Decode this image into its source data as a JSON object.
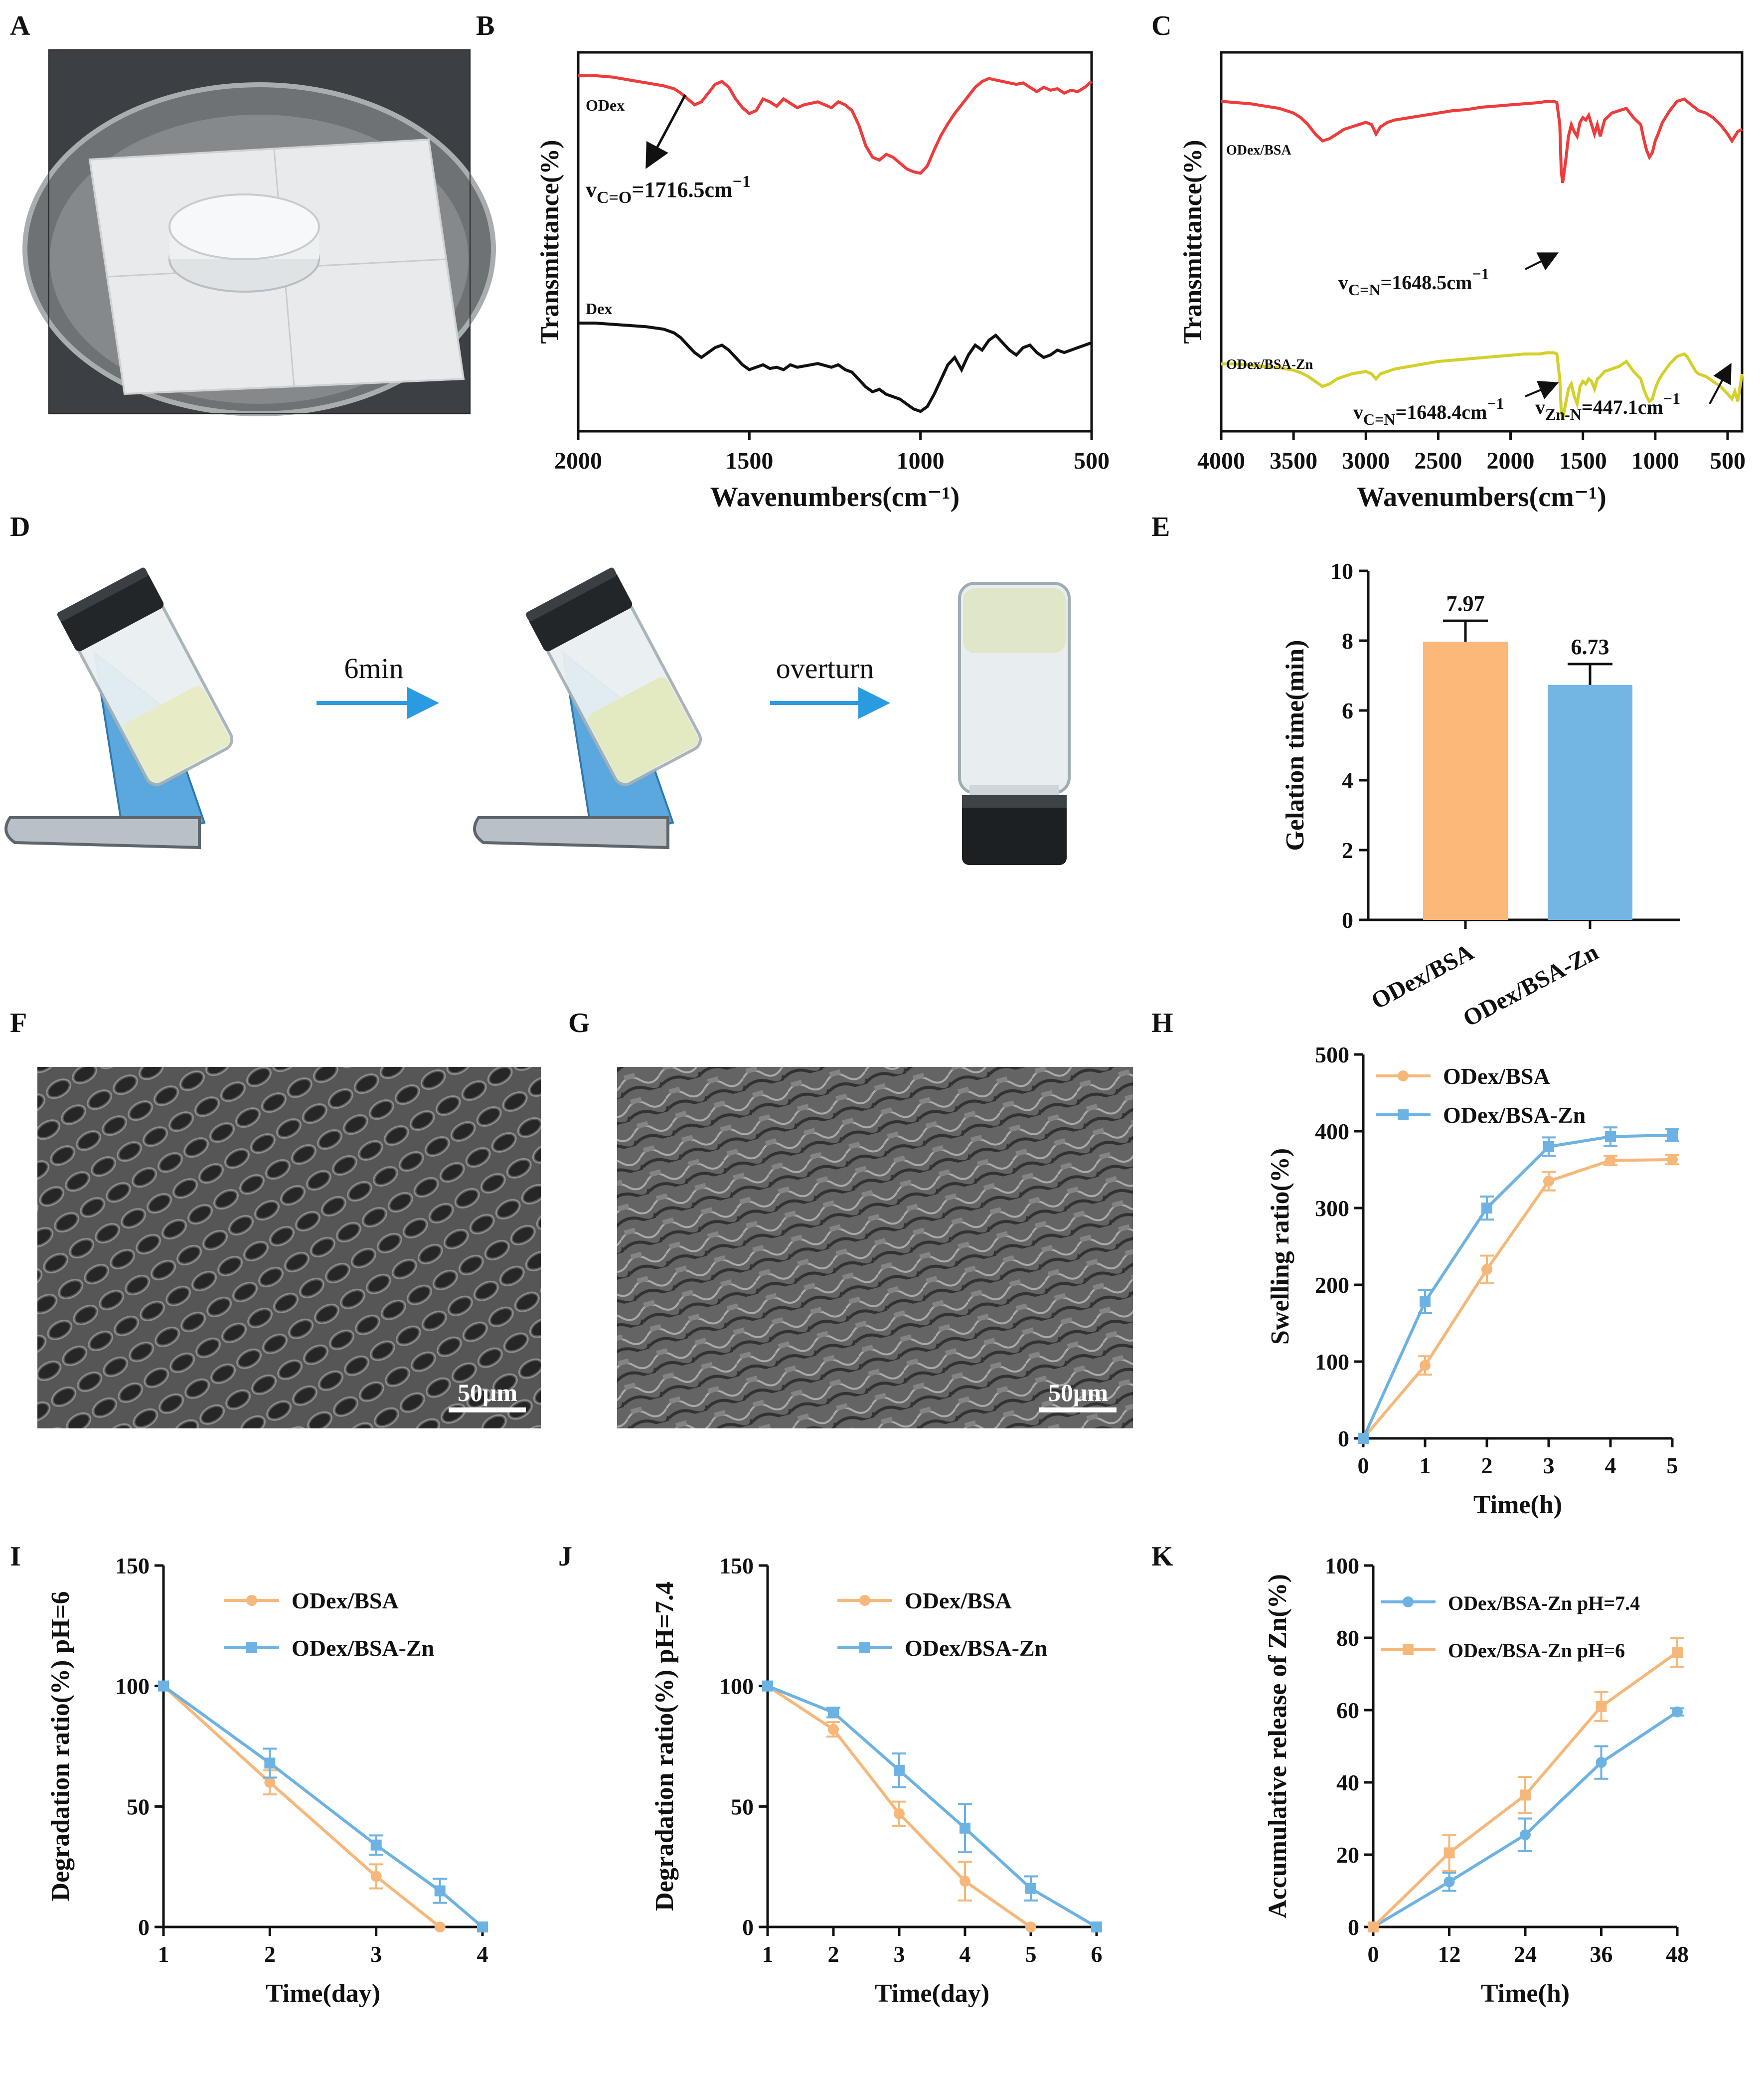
{
  "panel_labels": [
    "A",
    "B",
    "C",
    "D",
    "E",
    "F",
    "G",
    "H",
    "I",
    "J",
    "K"
  ],
  "colors": {
    "orange": "#f5b87a",
    "orange_bar": "#fbb878",
    "blue": "#6cb2e2",
    "blue_bar": "#73b6e3",
    "red": "#ee3b3b",
    "black": "#111111",
    "yellow": "#d4cf2a",
    "arrow": "#2a9be0"
  },
  "panel_A": {
    "description_icons": [
      "petri-dish-icon",
      "hydrogel-disc-icon",
      "weighing-paper-icon"
    ]
  },
  "panel_D": {
    "step1_label": "6min",
    "step2_label": "overturn"
  },
  "panel_F": {
    "scale_label": "50μm"
  },
  "panel_G": {
    "scale_label": "50μm"
  },
  "chart_data": [
    {
      "panel": "B",
      "type": "line",
      "title": "",
      "xlabel": "Wavenumbers(cm⁻¹)",
      "ylabel": "Transmittance(%)",
      "xlim": [
        2000,
        500
      ],
      "x_ticks": [
        "2000",
        "1500",
        "1000",
        "500"
      ],
      "series": [
        {
          "name": "ODex",
          "color": "#ee3b3b",
          "x": [
            2000,
            1950,
            1900,
            1850,
            1800,
            1750,
            1720,
            1700,
            1680,
            1660,
            1640,
            1620,
            1600,
            1580,
            1560,
            1540,
            1520,
            1500,
            1480,
            1460,
            1440,
            1420,
            1400,
            1380,
            1360,
            1340,
            1300,
            1260,
            1240,
            1220,
            1200,
            1180,
            1160,
            1140,
            1120,
            1100,
            1080,
            1060,
            1040,
            1020,
            1000,
            980,
            960,
            940,
            920,
            900,
            880,
            860,
            840,
            820,
            800,
            780,
            760,
            740,
            720,
            700,
            680,
            660,
            640,
            620,
            600,
            580,
            560,
            540,
            520,
            500
          ],
          "y": [
            96,
            96,
            95,
            93,
            91,
            89,
            87,
            84,
            80,
            76,
            78,
            84,
            90,
            92,
            88,
            80,
            74,
            70,
            72,
            80,
            78,
            75,
            80,
            77,
            74,
            76,
            78,
            74,
            78,
            76,
            72,
            62,
            48,
            40,
            38,
            42,
            40,
            36,
            32,
            30,
            29,
            34,
            45,
            55,
            63,
            70,
            76,
            82,
            88,
            92,
            94,
            93,
            92,
            91,
            90,
            91,
            88,
            85,
            88,
            86,
            87,
            84,
            86,
            85,
            88,
            92
          ]
        },
        {
          "name": "Dex",
          "color": "#111111",
          "x": [
            2000,
            1950,
            1900,
            1850,
            1800,
            1750,
            1720,
            1700,
            1680,
            1660,
            1640,
            1620,
            1600,
            1580,
            1560,
            1540,
            1520,
            1500,
            1480,
            1460,
            1440,
            1420,
            1400,
            1380,
            1360,
            1340,
            1300,
            1260,
            1240,
            1220,
            1200,
            1180,
            1160,
            1140,
            1120,
            1100,
            1080,
            1060,
            1040,
            1020,
            1000,
            980,
            960,
            940,
            920,
            900,
            880,
            860,
            840,
            820,
            800,
            780,
            760,
            740,
            720,
            700,
            680,
            660,
            640,
            620,
            600,
            580,
            560,
            540,
            520,
            500
          ],
          "y": [
            48,
            48,
            47,
            46,
            45,
            43,
            40,
            36,
            30,
            24,
            20,
            24,
            28,
            30,
            26,
            20,
            14,
            10,
            12,
            14,
            11,
            12,
            10,
            14,
            12,
            13,
            15,
            12,
            14,
            10,
            8,
            2,
            -4,
            -8,
            -6,
            -10,
            -12,
            -14,
            -18,
            -22,
            -24,
            -20,
            -10,
            2,
            14,
            20,
            10,
            22,
            30,
            26,
            34,
            38,
            32,
            26,
            22,
            28,
            30,
            24,
            20,
            22,
            26,
            24,
            26,
            28,
            30,
            32
          ]
        }
      ],
      "annotation": {
        "text_main": "v",
        "text_sub": "C=O",
        "text_rest": "=1716.5cm",
        "text_sup": "−1"
      },
      "series_labels": [
        "ODex",
        "Dex"
      ]
    },
    {
      "panel": "C",
      "type": "line",
      "title": "",
      "xlabel": "Wavenumbers(cm⁻¹)",
      "ylabel": "Transmittance(%)",
      "xlim": [
        4000,
        400
      ],
      "x_ticks": [
        "4000",
        "3500",
        "3000",
        "2500",
        "2000",
        "1500",
        "1000",
        "500"
      ],
      "series": [
        {
          "name": "ODex/BSA",
          "color": "#ee3b3b",
          "x": [
            4000,
            3900,
            3800,
            3700,
            3600,
            3500,
            3450,
            3400,
            3350,
            3300,
            3250,
            3200,
            3150,
            3100,
            3050,
            3000,
            2960,
            2930,
            2900,
            2850,
            2800,
            2700,
            2600,
            2500,
            2400,
            2300,
            2200,
            2100,
            2000,
            1900,
            1800,
            1750,
            1700,
            1680,
            1660,
            1650,
            1640,
            1620,
            1600,
            1580,
            1560,
            1540,
            1520,
            1500,
            1480,
            1460,
            1440,
            1420,
            1400,
            1380,
            1350,
            1300,
            1250,
            1200,
            1150,
            1100,
            1080,
            1060,
            1040,
            1020,
            1000,
            980,
            950,
            900,
            850,
            800,
            780,
            760,
            740,
            720,
            700,
            650,
            600,
            550,
            500,
            470,
            450,
            430,
            400
          ],
          "y": [
            90,
            89,
            88,
            86,
            84,
            80,
            76,
            70,
            62,
            56,
            58,
            62,
            66,
            68,
            70,
            72,
            70,
            62,
            68,
            72,
            74,
            76,
            78,
            80,
            82,
            83,
            85,
            86,
            87,
            88,
            89,
            90,
            90,
            89,
            70,
            30,
            20,
            38,
            60,
            70,
            64,
            60,
            72,
            76,
            74,
            78,
            70,
            62,
            70,
            60,
            74,
            80,
            82,
            84,
            76,
            70,
            58,
            48,
            42,
            46,
            56,
            62,
            72,
            82,
            90,
            92,
            90,
            88,
            86,
            84,
            82,
            80,
            76,
            70,
            62,
            56,
            60,
            64,
            66
          ]
        },
        {
          "name": "ODex/BSA-Zn",
          "color": "#d4cf2a",
          "x": [
            4000,
            3900,
            3800,
            3700,
            3600,
            3500,
            3450,
            3400,
            3350,
            3300,
            3250,
            3200,
            3150,
            3100,
            3050,
            3000,
            2960,
            2930,
            2900,
            2850,
            2800,
            2700,
            2600,
            2500,
            2400,
            2300,
            2200,
            2100,
            2000,
            1900,
            1800,
            1750,
            1700,
            1680,
            1660,
            1650,
            1640,
            1620,
            1600,
            1580,
            1560,
            1540,
            1520,
            1500,
            1480,
            1460,
            1440,
            1420,
            1400,
            1380,
            1350,
            1300,
            1250,
            1200,
            1150,
            1100,
            1080,
            1060,
            1040,
            1020,
            1000,
            980,
            950,
            900,
            850,
            800,
            780,
            760,
            740,
            720,
            700,
            650,
            600,
            550,
            500,
            470,
            450,
            430,
            400
          ],
          "y": [
            32,
            32,
            31,
            30,
            29,
            27,
            25,
            22,
            18,
            14,
            16,
            20,
            22,
            24,
            25,
            26,
            24,
            20,
            24,
            26,
            28,
            30,
            32,
            34,
            35,
            36,
            37,
            38,
            39,
            40,
            40,
            41,
            41,
            40,
            20,
            -6,
            -12,
            0,
            12,
            16,
            6,
            0,
            14,
            18,
            16,
            20,
            18,
            12,
            20,
            22,
            26,
            28,
            30,
            34,
            26,
            20,
            12,
            6,
            2,
            4,
            12,
            18,
            24,
            32,
            38,
            40,
            38,
            34,
            30,
            26,
            24,
            22,
            18,
            14,
            8,
            4,
            10,
            2,
            24
          ]
        }
      ],
      "series_labels": [
        "ODex/BSA",
        "ODex/BSA-Zn"
      ],
      "annotations": [
        {
          "main": "v",
          "sub": "C=N",
          "rest": "=1648.5cm",
          "sup": "−1"
        },
        {
          "main": "v",
          "sub": "C=N",
          "rest": "=1648.4cm",
          "sup": "−1"
        },
        {
          "main": "v",
          "sub": "Zn-N",
          "rest": "=447.1cm",
          "sup": "−1"
        }
      ]
    },
    {
      "panel": "E",
      "type": "bar",
      "title": "",
      "xlabel": "",
      "ylabel": "Gelation time(min)",
      "categories": [
        "ODex/BSA",
        "ODex/BSA-Zn"
      ],
      "values": [
        7.97,
        6.73
      ],
      "value_labels": [
        "7.97",
        "6.73"
      ],
      "errors": [
        0.6,
        0.6
      ],
      "ylim": [
        0,
        10
      ],
      "y_ticks": [
        "0",
        "2",
        "4",
        "6",
        "8",
        "10"
      ]
    },
    {
      "panel": "H",
      "type": "line",
      "title": "",
      "xlabel": "Time(h)",
      "ylabel": "Swelling ratio(%)",
      "x": [
        0,
        1,
        2,
        3,
        4,
        5
      ],
      "xlim": [
        0,
        5
      ],
      "ylim": [
        0,
        500
      ],
      "x_ticks": [
        "0",
        "1",
        "2",
        "3",
        "4",
        "5"
      ],
      "y_ticks": [
        "0",
        "100",
        "200",
        "300",
        "400",
        "500"
      ],
      "series": [
        {
          "name": "ODex/BSA",
          "marker": "circle",
          "values": [
            0,
            95,
            220,
            335,
            362,
            363
          ],
          "errors": [
            0,
            12,
            18,
            12,
            6,
            6
          ]
        },
        {
          "name": "ODex/BSA-Zn",
          "marker": "square",
          "values": [
            0,
            178,
            300,
            380,
            393,
            395
          ],
          "errors": [
            0,
            15,
            15,
            12,
            12,
            8
          ]
        }
      ],
      "legend": "top-left"
    },
    {
      "panel": "I",
      "type": "line",
      "title": "",
      "xlabel": "Time(day)",
      "ylabel": "Degradation ratio(%) pH=6",
      "xlim": [
        1,
        4
      ],
      "ylim": [
        0,
        150
      ],
      "x_ticks": [
        "1",
        "2",
        "3",
        "4"
      ],
      "y_ticks": [
        "0",
        "50",
        "100",
        "150"
      ],
      "series": [
        {
          "name": "ODex/BSA",
          "marker": "circle",
          "x": [
            1,
            2,
            3,
            3.6
          ],
          "values": [
            100,
            60,
            21,
            0
          ],
          "errors": [
            0,
            5,
            5,
            0
          ]
        },
        {
          "name": "ODex/BSA-Zn",
          "marker": "square",
          "x": [
            1,
            2,
            3,
            3.6,
            4
          ],
          "values": [
            100,
            68,
            34,
            15,
            0
          ],
          "errors": [
            0,
            6,
            4,
            5,
            0
          ]
        }
      ],
      "legend": "top-right"
    },
    {
      "panel": "J",
      "type": "line",
      "title": "",
      "xlabel": "Time(day)",
      "ylabel": "Degradation ratio(%) pH=7.4",
      "xlim": [
        1,
        6
      ],
      "ylim": [
        0,
        150
      ],
      "x_ticks": [
        "1",
        "2",
        "3",
        "4",
        "5",
        "6"
      ],
      "y_ticks": [
        "0",
        "50",
        "100",
        "150"
      ],
      "series": [
        {
          "name": "ODex/BSA",
          "marker": "circle",
          "x": [
            1,
            2,
            3,
            4,
            5
          ],
          "values": [
            100,
            82,
            47,
            19,
            0
          ],
          "errors": [
            0,
            3,
            5,
            8,
            0
          ]
        },
        {
          "name": "ODex/BSA-Zn",
          "marker": "square",
          "x": [
            1,
            2,
            3,
            4,
            5,
            6
          ],
          "values": [
            100,
            89,
            65,
            41,
            16,
            0
          ],
          "errors": [
            0,
            2,
            7,
            10,
            5,
            0
          ]
        }
      ],
      "legend": "top-right"
    },
    {
      "panel": "K",
      "type": "line",
      "title": "",
      "xlabel": "Time(h)",
      "ylabel": "Accumulative release of Zn(%)",
      "xlim": [
        0,
        48
      ],
      "ylim": [
        0,
        100
      ],
      "x_ticks": [
        "0",
        "12",
        "24",
        "36",
        "48"
      ],
      "y_ticks": [
        "0",
        "20",
        "40",
        "60",
        "80",
        "100"
      ],
      "series": [
        {
          "name": "ODex/BSA-Zn pH=7.4",
          "marker": "circle",
          "color": "#6cb2e2",
          "x": [
            0,
            12,
            24,
            36,
            48
          ],
          "values": [
            0,
            12.5,
            25.5,
            45.5,
            59.5
          ],
          "errors": [
            0,
            2.5,
            4.5,
            4.5,
            1
          ]
        },
        {
          "name": "ODex/BSA-Zn pH=6",
          "marker": "square",
          "color": "#f5b87a",
          "x": [
            0,
            12,
            24,
            36,
            48
          ],
          "values": [
            0,
            20.5,
            36.5,
            61,
            76
          ],
          "errors": [
            0,
            5,
            5,
            4,
            4
          ]
        }
      ],
      "legend": "top-left"
    }
  ]
}
